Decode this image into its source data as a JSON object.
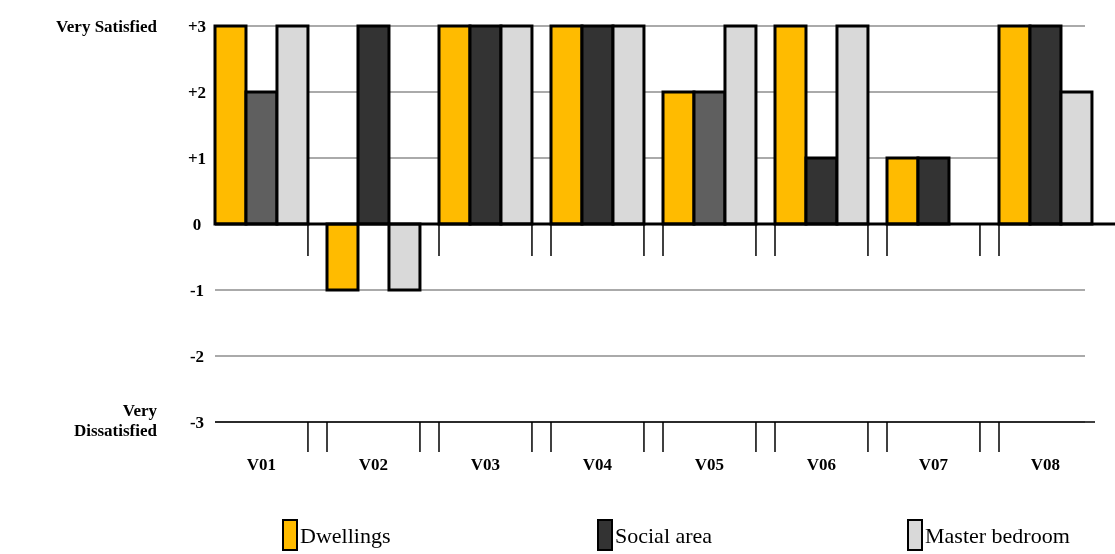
{
  "chart_data": {
    "type": "bar",
    "categories": [
      "V01",
      "V02",
      "V03",
      "V04",
      "V05",
      "V06",
      "V07",
      "V08"
    ],
    "series": [
      {
        "name": "Dwellings",
        "color": "#ffbb00",
        "values": [
          3,
          -1,
          3,
          3,
          2,
          3,
          1,
          3
        ]
      },
      {
        "name": "Social area",
        "color": "#333333",
        "colors": [
          "#5f5f5f",
          "#333333",
          "#333333",
          "#333333",
          "#5f5f5f",
          "#333333",
          "#333333",
          "#333333"
        ],
        "values": [
          2,
          3,
          3,
          3,
          2,
          1,
          1,
          3
        ]
      },
      {
        "name": "Master bedroom",
        "color": "#d9d9d9",
        "values": [
          3,
          -1,
          3,
          3,
          3,
          3,
          0,
          2
        ]
      }
    ],
    "ylim": [
      -3,
      3
    ],
    "yticks": [
      {
        "value": 3,
        "label": "+3"
      },
      {
        "value": 2,
        "label": "+2"
      },
      {
        "value": 1,
        "label": "+1"
      },
      0,
      -1,
      -2,
      -3
    ],
    "annotations": [
      "Very Satisfied",
      "Very Dissatisfied"
    ],
    "grid": "y",
    "legend": "bottom"
  }
}
